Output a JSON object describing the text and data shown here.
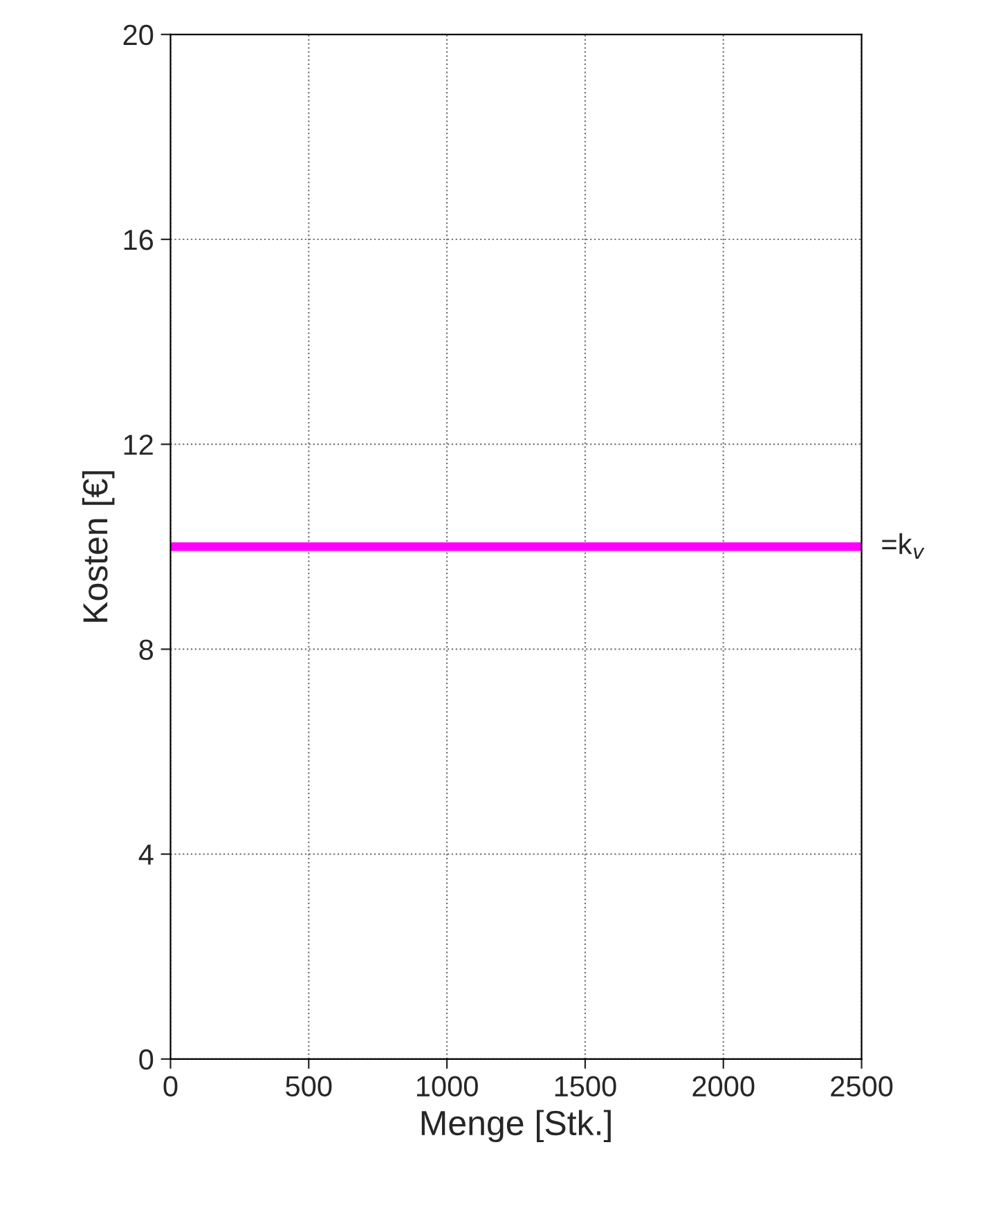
{
  "chart_data": {
    "type": "line",
    "xlabel": "Menge [Stk.]",
    "ylabel": "Kosten [€]",
    "x": [
      0,
      2500
    ],
    "series": [
      {
        "color": "#ff00ff",
        "values": [
          10,
          10
        ]
      }
    ],
    "xlim": [
      0,
      2500
    ],
    "xticks": [
      0,
      500,
      1000,
      1500,
      2000,
      2500
    ],
    "ylim": [
      0,
      20
    ],
    "yticks": [
      0,
      4,
      8,
      12,
      16,
      20
    ],
    "grid": true,
    "marker": "none",
    "line_style": "solid",
    "legend": false,
    "annotations": [
      {
        "text": "=k$_{v}$",
        "x": 2500,
        "y": 10
      }
    ]
  }
}
